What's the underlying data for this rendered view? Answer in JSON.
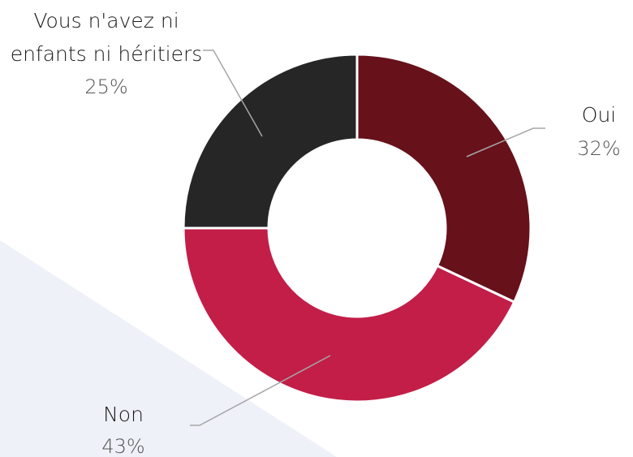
{
  "colors": {
    "background_shape": "#eef1f8"
  },
  "chart_data": {
    "type": "pie",
    "variant": "donut",
    "title": "",
    "slices": [
      {
        "label": "Oui",
        "value": 32,
        "value_label": "32%",
        "color": "#67111a"
      },
      {
        "label": "Non",
        "value": 43,
        "value_label": "43%",
        "color": "#c21e48"
      },
      {
        "label_lines": [
          "Vous n'avez ni",
          "enfants ni héritiers"
        ],
        "value": 25,
        "value_label": "25%",
        "color": "#262626"
      }
    ]
  }
}
